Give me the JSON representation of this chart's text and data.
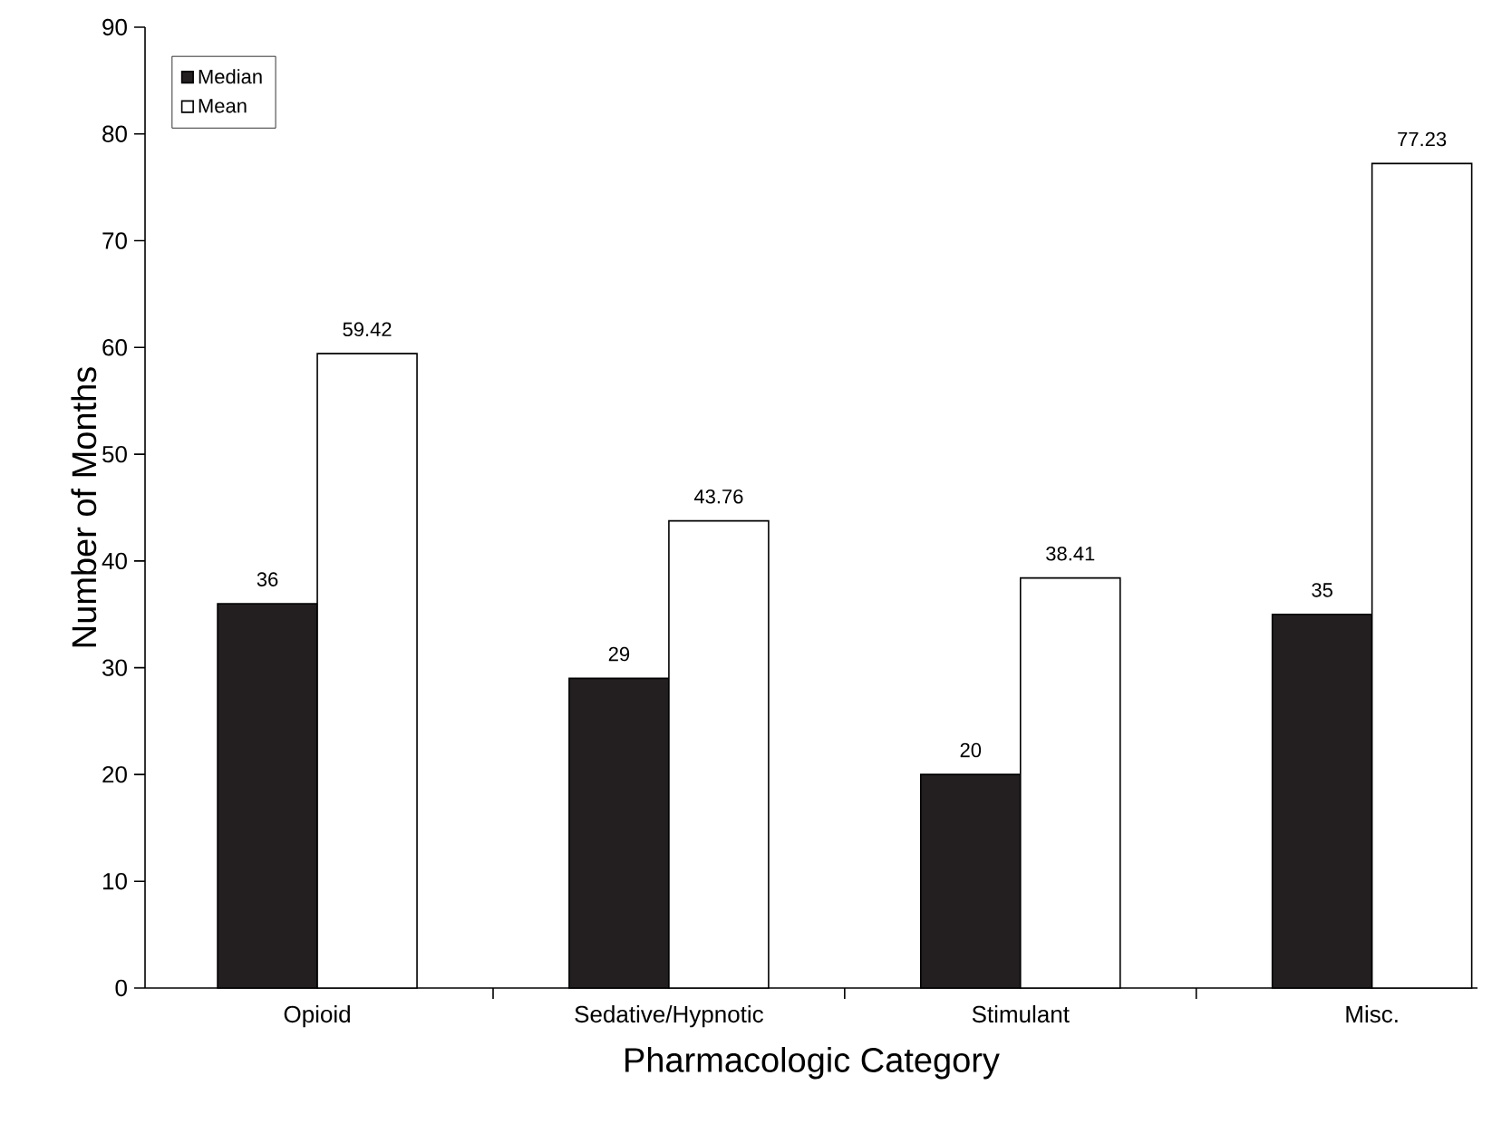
{
  "chart_data": {
    "type": "bar",
    "xlabel": "Pharmacologic Category",
    "ylabel": "Number of Months",
    "categories": [
      "Opioid",
      "Sedative/Hypnotic",
      "Stimulant",
      "Misc."
    ],
    "series": [
      {
        "name": "Median",
        "color": "#231f20",
        "values": [
          36,
          29,
          20,
          35
        ]
      },
      {
        "name": "Mean",
        "color": "#ffffff",
        "values": [
          59.42,
          43.76,
          38.41,
          77.23
        ]
      }
    ],
    "ylim": [
      0,
      90
    ],
    "yticks": [
      0,
      10,
      20,
      30,
      40,
      50,
      60,
      70,
      80,
      90
    ],
    "data_labels": true,
    "legend": "top left",
    "grid": false
  }
}
